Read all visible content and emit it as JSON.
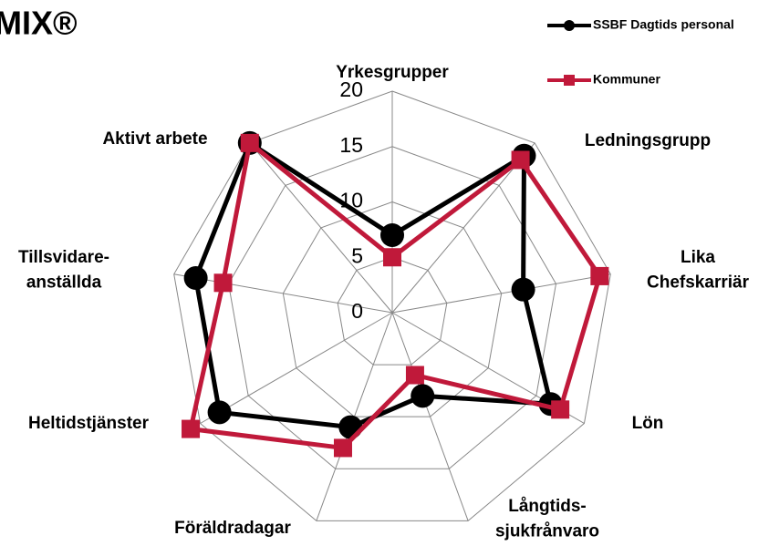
{
  "chart_data": {
    "type": "radar",
    "title": "MIX®",
    "categories": [
      "Yrkesgrupper",
      "Ledningsgrupp",
      "Lika\nChefskarriär",
      "Lön",
      "Långtids-\nsjukfrånvaro",
      "Föräldradagar",
      "Heltidstjänster",
      "Tillsvidare-\nanställda",
      "Aktivt arbete"
    ],
    "series": [
      {
        "name": "SSBF Dagtids personal",
        "color": "#000000",
        "marker": "circle",
        "values": [
          7,
          18.5,
          12,
          16.5,
          8,
          11,
          18,
          18,
          20
        ]
      },
      {
        "name": "Kommuner",
        "color": "#c0193a",
        "marker": "square",
        "values": [
          5,
          18,
          19,
          17.5,
          6,
          13,
          21,
          15.5,
          20
        ]
      }
    ],
    "ylim": [
      0,
      20
    ],
    "yticks": [
      0,
      5,
      10,
      15,
      20
    ],
    "grid": true,
    "legend": "top-right"
  }
}
